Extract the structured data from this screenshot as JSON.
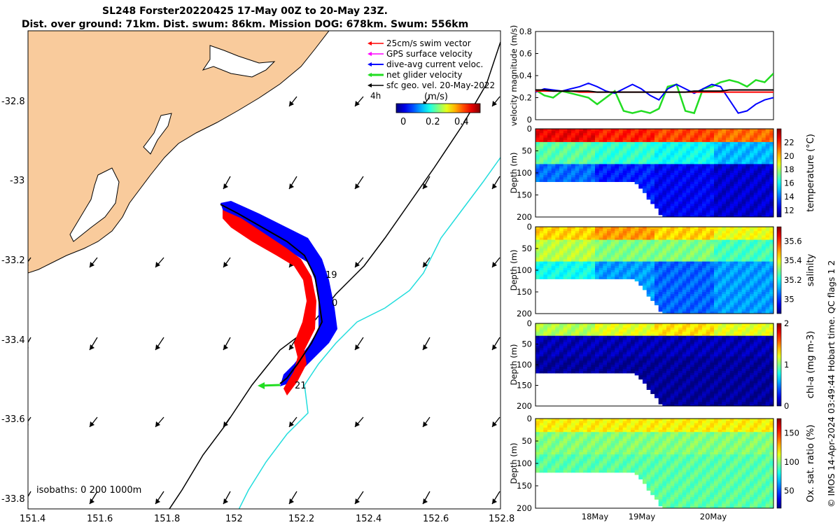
{
  "title_line1": "SL248 Forster20220425 17-May 00Z to 20-May 23Z.",
  "title_line2": "Dist. over ground: 71km. Dist. swum: 86km. Mission DOG: 678km. Swum: 556km",
  "credit": "© IMOS 14-Apr-2024 03:49:44 Hobart time. QC flags 1  2",
  "colors": {
    "land": "#f9cb9c",
    "swim": "#ff0000",
    "gps": "#ff00ff",
    "dive_avg": "#0000ff",
    "net": "#22dd22",
    "geo": "#000000",
    "isobath200": "#000000",
    "isobath1000": "#22dddd"
  },
  "map": {
    "legend": [
      "25cm/s swim vector",
      "GPS surface velocity",
      "dive-avg current veloc.",
      "net glider velocity",
      "sfc geo. vel. 20-May-2022"
    ],
    "colorbar_label": "(m/s)",
    "colorbar_ticks": [
      "0",
      "0.2",
      "0.4"
    ],
    "time_label": "4h",
    "isobaths_label": "isobaths: 0   200  1000m",
    "track_labels": [
      "19",
      "0",
      "21"
    ],
    "lon_ticks": [
      "151.4",
      "151.6",
      "151.8",
      "152",
      "152.2",
      "152.4",
      "152.6",
      "152.8"
    ],
    "lat_ticks": [
      "-32.8",
      "-33",
      "-33.2",
      "-33.4",
      "-33.6",
      "-33.8"
    ],
    "lon_range": [
      151.4,
      152.8
    ],
    "lat_range": [
      -33.83,
      -32.65
    ]
  },
  "chart_data": [
    {
      "type": "line",
      "ylabel": "velocity magnitude (m/s)",
      "ylim": [
        0,
        0.8
      ],
      "yticks": [
        "0",
        "0.2",
        "0.4",
        "0.6",
        "0.8"
      ],
      "x_range": [
        "17-May 00Z",
        "20-May 23Z"
      ],
      "series": [
        {
          "color": "#22dd22",
          "values": [
            0.27,
            0.22,
            0.2,
            0.26,
            0.24,
            0.22,
            0.2,
            0.14,
            0.2,
            0.26,
            0.08,
            0.06,
            0.08,
            0.06,
            0.1,
            0.3,
            0.32,
            0.08,
            0.06,
            0.28,
            0.3,
            0.34,
            0.36,
            0.34,
            0.3,
            0.36,
            0.34,
            0.42
          ]
        },
        {
          "color": "#0000ff",
          "values": [
            0.25,
            0.28,
            0.27,
            0.26,
            0.28,
            0.3,
            0.33,
            0.3,
            0.26,
            0.24,
            0.28,
            0.32,
            0.28,
            0.22,
            0.18,
            0.28,
            0.32,
            0.28,
            0.24,
            0.28,
            0.32,
            0.3,
            0.18,
            0.06,
            0.08,
            0.14,
            0.18,
            0.2
          ]
        },
        {
          "color": "#ff0000",
          "values": [
            0.26,
            0.26,
            0.26,
            0.26,
            0.26,
            0.25,
            0.25,
            0.25,
            0.25,
            0.25,
            0.25,
            0.25,
            0.25,
            0.25,
            0.25,
            0.25,
            0.25,
            0.25,
            0.25,
            0.25,
            0.25,
            0.25,
            0.25,
            0.25,
            0.25,
            0.25,
            0.25,
            0.25
          ]
        },
        {
          "color": "#000000",
          "values": [
            0.27,
            0.27,
            0.26,
            0.26,
            0.26,
            0.26,
            0.26,
            0.25,
            0.25,
            0.25,
            0.25,
            0.25,
            0.25,
            0.25,
            0.25,
            0.25,
            0.25,
            0.25,
            0.26,
            0.26,
            0.26,
            0.26,
            0.27,
            0.27,
            0.27,
            0.27,
            0.27,
            0.27
          ]
        }
      ]
    },
    {
      "type": "heatmap",
      "ylabel": "Depth (m)",
      "cbar_label": "temperature (°C)",
      "ylim": [
        0,
        200
      ],
      "yticks": [
        "0",
        "50",
        "100",
        "150",
        "200"
      ],
      "clim": [
        11,
        24
      ],
      "cticks": [
        "12",
        "14",
        "16",
        "18",
        "20",
        "22"
      ],
      "profile": {
        "surface": [
          22.5,
          22,
          21.5,
          21
        ],
        "mid": [
          17,
          16.5,
          16,
          15
        ],
        "deep": [
          14,
          13,
          12.5,
          12
        ]
      }
    },
    {
      "type": "heatmap",
      "ylabel": "Depth (m)",
      "cbar_label": "salinity",
      "ylim": [
        0,
        200
      ],
      "yticks": [
        "0",
        "50",
        "100",
        "150",
        "200"
      ],
      "clim": [
        34.85,
        35.75
      ],
      "cticks": [
        "35",
        "35.2",
        "35.4",
        "35.6"
      ],
      "profile": {
        "surface": [
          35.45,
          35.5,
          35.45,
          35.4
        ],
        "mid": [
          35.35,
          35.3,
          35.3,
          35.25
        ],
        "deep": [
          35.2,
          35.1,
          35.05,
          35.1
        ]
      }
    },
    {
      "type": "heatmap",
      "ylabel": "Depth (m)",
      "cbar_label": "chl-a (mg m-3)",
      "ylim": [
        0,
        200
      ],
      "yticks": [
        "0",
        "50",
        "100",
        "150",
        "200"
      ],
      "clim": [
        0,
        2
      ],
      "cticks": [
        "0",
        "1",
        "2"
      ],
      "profile": {
        "surface": [
          1.1,
          1.2,
          1.3,
          1.2
        ],
        "mid": [
          0.1,
          0.1,
          0.1,
          0.1
        ],
        "deep": [
          0.05,
          0.05,
          0.05,
          0.05
        ]
      }
    },
    {
      "type": "heatmap",
      "ylabel": "Depth (m)",
      "cbar_label": "Ox. sat. ratio (%)",
      "ylim": [
        0,
        200
      ],
      "yticks": [
        "0",
        "50",
        "100",
        "150",
        "200"
      ],
      "clim": [
        20,
        175
      ],
      "cticks": [
        "50",
        "100",
        "150"
      ],
      "xticks": [
        "18May",
        "19May",
        "20May"
      ],
      "profile": {
        "surface": [
          118,
          118,
          118,
          118
        ],
        "mid": [
          98,
          98,
          98,
          98
        ],
        "deep": [
          92,
          92,
          92,
          92
        ]
      }
    }
  ]
}
